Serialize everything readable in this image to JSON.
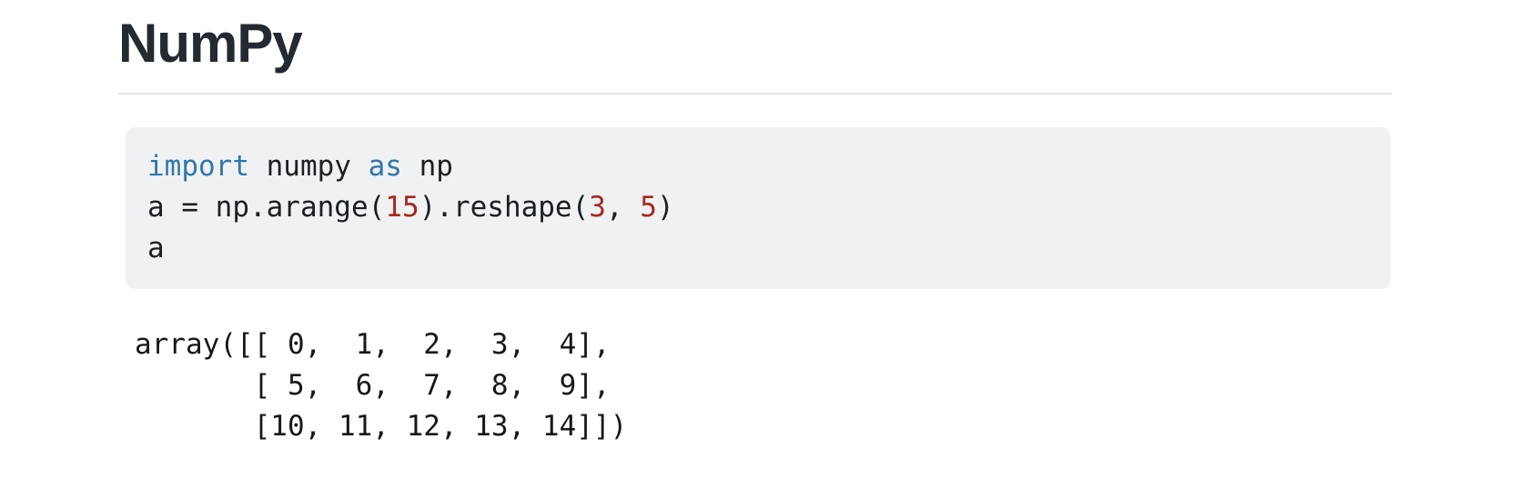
{
  "page": {
    "title": "NumPy"
  },
  "code": {
    "lines": [
      {
        "tokens": [
          {
            "type": "keyword",
            "text": "import"
          },
          {
            "type": "plain",
            "text": " numpy "
          },
          {
            "type": "keyword",
            "text": "as"
          },
          {
            "type": "plain",
            "text": " np"
          }
        ]
      },
      {
        "tokens": [
          {
            "type": "plain",
            "text": "a = np.arange("
          },
          {
            "type": "number",
            "text": "15"
          },
          {
            "type": "plain",
            "text": ").reshape("
          },
          {
            "type": "number",
            "text": "3"
          },
          {
            "type": "plain",
            "text": ", "
          },
          {
            "type": "number",
            "text": "5"
          },
          {
            "type": "plain",
            "text": ")"
          }
        ]
      },
      {
        "tokens": [
          {
            "type": "plain",
            "text": "a"
          }
        ]
      }
    ]
  },
  "output": {
    "lines": [
      "array([[ 0,  1,  2,  3,  4],",
      "       [ 5,  6,  7,  8,  9],",
      "       [10, 11, 12, 13, 14]])"
    ]
  },
  "colors": {
    "page_background": "#ffffff",
    "heading_text": "#242a31",
    "divider": "#dfe2e6",
    "code_background": "#eff1f3",
    "code_text": "#1b1f23",
    "keyword": "#3177a7",
    "number": "#a5291f",
    "output_text": "#16181b"
  }
}
